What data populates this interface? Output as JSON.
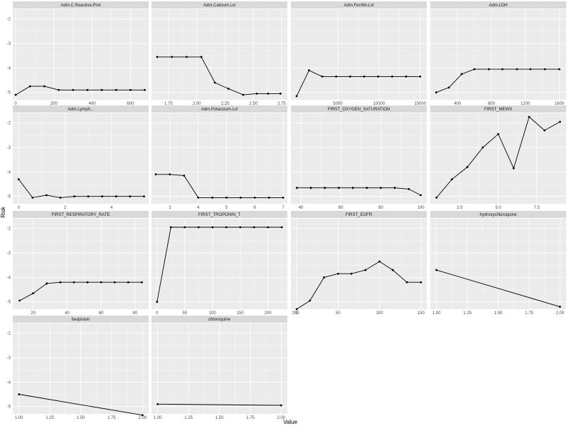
{
  "chart_data": {
    "type": "line",
    "xlabel": "Value",
    "ylabel": "Risk",
    "ylim": [
      -5.3,
      -1.6
    ],
    "yticks": [
      -2,
      -3,
      -4,
      -5
    ],
    "ytick_labels": [
      "-2",
      "-3",
      "-4",
      "-5"
    ],
    "grid": true,
    "colors": {
      "panel_bg": "#ebebeb",
      "strip_bg": "#d9d9d9",
      "grid_major": "#ffffff",
      "line": "#000000"
    },
    "panels": [
      {
        "title": "Adm.C.Reactive.Prot",
        "x": [
          0,
          75,
          150,
          225,
          300,
          375,
          450,
          525,
          600,
          675
        ],
        "y": [
          -5.1,
          -4.75,
          -4.75,
          -4.9,
          -4.9,
          -4.9,
          -4.9,
          -4.9,
          -4.9,
          -4.9
        ],
        "xlim": [
          -15,
          695
        ],
        "xticks": [
          0,
          200,
          400,
          600
        ],
        "xtick_labels": [
          "0",
          "200",
          "400",
          "600"
        ]
      },
      {
        "title": "Adm.Calcium.Lvl",
        "x": [
          1.65,
          1.78,
          1.91,
          2.04,
          2.16,
          2.28,
          2.41,
          2.53,
          2.63,
          2.74
        ],
        "y": [
          -3.55,
          -3.55,
          -3.55,
          -3.55,
          -4.6,
          -4.85,
          -5.1,
          -5.05,
          -5.05,
          -5.05
        ],
        "xlim": [
          1.6,
          2.8
        ],
        "xticks": [
          1.75,
          2.0,
          2.25,
          2.5,
          2.75
        ],
        "xtick_labels": [
          "1.75",
          "2.00",
          "2.25",
          "2.50",
          "2.75"
        ]
      },
      {
        "title": "Adm.Ferritin.Lvl",
        "x": [
          0,
          1500,
          3100,
          4800,
          6500,
          8200,
          9900,
          11600,
          13300,
          15000
        ],
        "y": [
          -5.15,
          -4.1,
          -4.35,
          -4.35,
          -4.35,
          -4.35,
          -4.35,
          -4.35,
          -4.35,
          -4.35
        ],
        "xlim": [
          -700,
          15800
        ],
        "xticks": [
          5000,
          10000,
          15000
        ],
        "xtick_labels": [
          "5000",
          "10000",
          "15000"
        ]
      },
      {
        "title": "Adm.LDH",
        "x": [
          150,
          300,
          450,
          600,
          770,
          930,
          1100,
          1260,
          1430,
          1600
        ],
        "y": [
          -5.0,
          -4.8,
          -4.25,
          -4.05,
          -4.05,
          -4.05,
          -4.05,
          -4.05,
          -4.05,
          -4.05
        ],
        "xlim": [
          80,
          1680
        ],
        "xticks": [
          400,
          800,
          1200,
          1600
        ],
        "xtick_labels": [
          "400",
          "800",
          "1200",
          "1600"
        ]
      },
      {
        "title": "Adm.Lymph...",
        "x": [
          0,
          0.6,
          1.2,
          1.8,
          2.4,
          3.0,
          3.6,
          4.2,
          4.8,
          5.4
        ],
        "y": [
          -4.3,
          -5.05,
          -4.95,
          -5.05,
          -5.0,
          -5.0,
          -5.0,
          -5.0,
          -5.0,
          -5.0
        ],
        "xlim": [
          -0.25,
          5.6
        ],
        "xticks": [
          0,
          2,
          4
        ],
        "xtick_labels": [
          "0",
          "2",
          "4"
        ]
      },
      {
        "title": "Adm.Potassium.Lvl",
        "x": [
          2.5,
          3.0,
          3.5,
          4.0,
          4.5,
          5.0,
          5.5,
          6.0,
          6.5,
          7.0
        ],
        "y": [
          -4.1,
          -4.1,
          -4.15,
          -5.05,
          -5.05,
          -5.05,
          -5.05,
          -5.05,
          -5.05,
          -5.05
        ],
        "xlim": [
          2.35,
          7.15
        ],
        "xticks": [
          3,
          4,
          5,
          6,
          7
        ],
        "xtick_labels": [
          "3",
          "4",
          "5",
          "6",
          "7"
        ]
      },
      {
        "title": "FIRST_OXYGEN_SATURATION",
        "x": [
          38,
          45,
          52,
          59,
          66,
          73,
          80,
          87,
          94,
          100
        ],
        "y": [
          -4.65,
          -4.65,
          -4.65,
          -4.65,
          -4.65,
          -4.65,
          -4.65,
          -4.65,
          -4.7,
          -4.95
        ],
        "xlim": [
          35,
          103
        ],
        "xticks": [
          40,
          60,
          80,
          100
        ],
        "xtick_labels": [
          "40",
          "60",
          "80",
          "100"
        ]
      },
      {
        "title": "FIRST_MEWS",
        "x": [
          1,
          2,
          3,
          4,
          5,
          6,
          7,
          8,
          9
        ],
        "y": [
          -5.05,
          -4.3,
          -3.8,
          -3.0,
          -2.45,
          -3.85,
          -1.75,
          -2.3,
          -1.95
        ],
        "xlim": [
          0.6,
          9.4
        ],
        "xticks": [
          2.5,
          5.0,
          7.5
        ],
        "xtick_labels": [
          "2.5",
          "5.0",
          "7.5"
        ]
      },
      {
        "title": "FIRST_RESPIRATORY_RATE",
        "x": [
          12,
          20,
          28,
          36,
          44,
          52,
          60,
          68,
          76,
          84
        ],
        "y": [
          -4.95,
          -4.65,
          -4.25,
          -4.2,
          -4.2,
          -4.2,
          -4.2,
          -4.2,
          -4.2,
          -4.2
        ],
        "xlim": [
          8,
          88
        ],
        "xticks": [
          20,
          40,
          60,
          80
        ],
        "xtick_labels": [
          "20",
          "40",
          "60",
          "80"
        ]
      },
      {
        "title": "FIRST_TROPONIN_T",
        "x": [
          0,
          25,
          50,
          75,
          100,
          125,
          150,
          175,
          200,
          225
        ],
        "y": [
          -5.0,
          -1.95,
          -1.95,
          -1.95,
          -1.95,
          -1.95,
          -1.95,
          -1.95,
          -1.95,
          -1.95
        ],
        "xlim": [
          -10,
          235
        ],
        "xticks": [
          0,
          50,
          100,
          150,
          200,
          250
        ],
        "xtick_labels": [
          "0",
          "50",
          "100",
          "150",
          "200",
          "250"
        ]
      },
      {
        "title": "FIRST_EGFR",
        "x": [
          0,
          16,
          33,
          50,
          66,
          83,
          100,
          116,
          133,
          150
        ],
        "y": [
          -5.3,
          -4.95,
          -4.0,
          -3.85,
          -3.85,
          -3.7,
          -3.35,
          -3.7,
          -4.2,
          -4.2
        ],
        "xlim": [
          -7,
          157
        ],
        "xticks": [
          0,
          50,
          100,
          150
        ],
        "xtick_labels": [
          "0",
          "50",
          "100",
          "150"
        ]
      },
      {
        "title": "hydroxychloroquine",
        "x": [
          1,
          2
        ],
        "y": [
          -3.7,
          -5.2
        ],
        "xlim": [
          0.95,
          2.05
        ],
        "xticks": [
          1.0,
          1.25,
          1.5,
          1.75,
          2.0
        ],
        "xtick_labels": [
          "1.00",
          "1.25",
          "1.50",
          "1.75",
          "2.00"
        ]
      },
      {
        "title": "favipiravir",
        "x": [
          1,
          2
        ],
        "y": [
          -4.5,
          -5.35
        ],
        "xlim": [
          0.95,
          2.05
        ],
        "xticks": [
          1.0,
          1.25,
          1.5,
          1.75,
          2.0
        ],
        "xtick_labels": [
          "1.00",
          "1.25",
          "1.50",
          "1.75",
          "2.00"
        ]
      },
      {
        "title": "chloroquine",
        "x": [
          1,
          2
        ],
        "y": [
          -4.9,
          -4.95
        ],
        "xlim": [
          0.95,
          2.05
        ],
        "xticks": [
          1.0,
          1.25,
          1.5,
          1.75,
          2.0
        ],
        "xtick_labels": [
          "1.00",
          "1.25",
          "1.50",
          "1.75",
          "2.00"
        ]
      }
    ]
  }
}
